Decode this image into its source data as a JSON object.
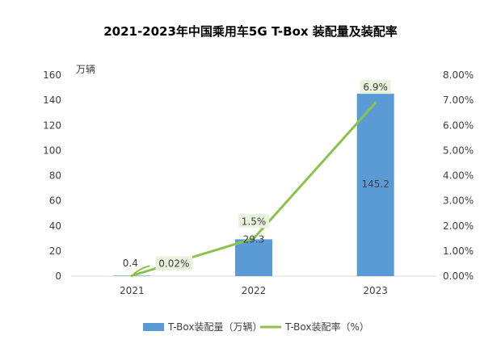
{
  "chart_data": {
    "type": "bar+line",
    "title": "2021-2023年中国乘用车5G T-Box 装配量及装配率",
    "categories": [
      "2021",
      "2022",
      "2023"
    ],
    "y_left": {
      "unit_label": "万辆",
      "ylim": [
        0,
        160
      ],
      "ticks": [
        "0",
        "20",
        "40",
        "60",
        "80",
        "100",
        "120",
        "140",
        "160"
      ]
    },
    "y_right": {
      "ylim": [
        0,
        8
      ],
      "ticks": [
        "0.00%",
        "1.00%",
        "2.00%",
        "3.00%",
        "4.00%",
        "5.00%",
        "6.00%",
        "7.00%",
        "8.00%"
      ]
    },
    "series": [
      {
        "name": "T-Box装配量（万辆）",
        "type": "bar",
        "axis": "left",
        "color": "#5b9bd5",
        "values": [
          0.4,
          29.3,
          145.2
        ],
        "labels": [
          "0.4",
          "29.3",
          "145.2"
        ]
      },
      {
        "name": "T-Box装配率（%）",
        "type": "line",
        "axis": "right",
        "color": "#8bc34a",
        "values": [
          0.02,
          1.5,
          6.9
        ],
        "labels": [
          "0.02%",
          "1.5%",
          "6.9%"
        ]
      }
    ],
    "grid": false,
    "legend_position": "bottom"
  }
}
